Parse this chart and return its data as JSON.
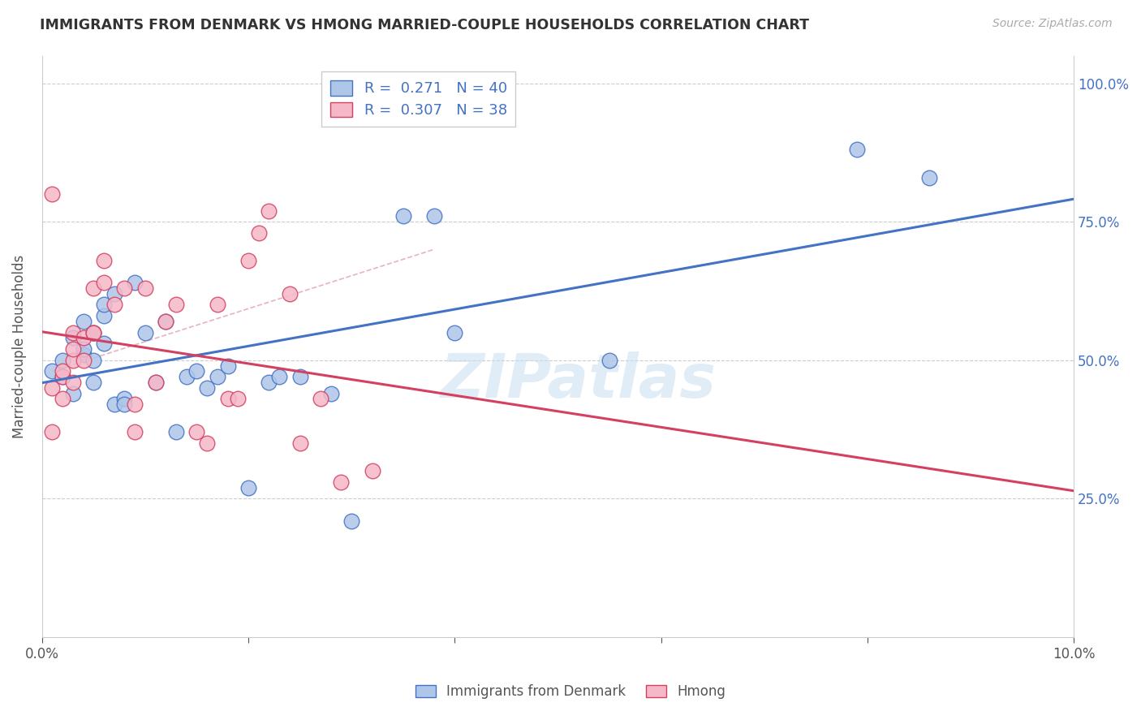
{
  "title": "IMMIGRANTS FROM DENMARK VS HMONG MARRIED-COUPLE HOUSEHOLDS CORRELATION CHART",
  "source": "Source: ZipAtlas.com",
  "ylabel": "Married-couple Households",
  "xmin": 0.0,
  "xmax": 0.1,
  "ymin": 0.0,
  "ymax": 1.05,
  "x_ticks": [
    0.0,
    0.02,
    0.04,
    0.06,
    0.08,
    0.1
  ],
  "x_tick_labels": [
    "0.0%",
    "",
    "",
    "",
    "",
    "10.0%"
  ],
  "y_ticks": [
    0.0,
    0.25,
    0.5,
    0.75,
    1.0
  ],
  "right_y_tick_labels": [
    "",
    "25.0%",
    "50.0%",
    "75.0%",
    "100.0%"
  ],
  "color_denmark": "#aec6e8",
  "color_hmong": "#f5b8c8",
  "line_color_denmark": "#4472c4",
  "line_color_hmong": "#d44060",
  "dashed_line_color": "#e0a0b8",
  "watermark": "ZIPatlas",
  "denmark_x": [
    0.001,
    0.002,
    0.002,
    0.003,
    0.003,
    0.004,
    0.004,
    0.004,
    0.005,
    0.005,
    0.005,
    0.006,
    0.006,
    0.006,
    0.007,
    0.007,
    0.008,
    0.008,
    0.009,
    0.01,
    0.011,
    0.012,
    0.013,
    0.014,
    0.015,
    0.016,
    0.017,
    0.018,
    0.02,
    0.022,
    0.023,
    0.025,
    0.028,
    0.03,
    0.035,
    0.038,
    0.04,
    0.055,
    0.079,
    0.086
  ],
  "denmark_y": [
    0.48,
    0.47,
    0.5,
    0.54,
    0.44,
    0.51,
    0.52,
    0.57,
    0.46,
    0.5,
    0.55,
    0.53,
    0.58,
    0.6,
    0.62,
    0.42,
    0.43,
    0.42,
    0.64,
    0.55,
    0.46,
    0.57,
    0.37,
    0.47,
    0.48,
    0.45,
    0.47,
    0.49,
    0.27,
    0.46,
    0.47,
    0.47,
    0.44,
    0.21,
    0.76,
    0.76,
    0.55,
    0.5,
    0.88,
    0.83
  ],
  "hmong_x": [
    0.001,
    0.001,
    0.001,
    0.002,
    0.002,
    0.002,
    0.003,
    0.003,
    0.003,
    0.003,
    0.004,
    0.004,
    0.005,
    0.005,
    0.005,
    0.006,
    0.006,
    0.007,
    0.008,
    0.009,
    0.009,
    0.01,
    0.011,
    0.012,
    0.013,
    0.015,
    0.016,
    0.017,
    0.018,
    0.019,
    0.02,
    0.021,
    0.022,
    0.024,
    0.025,
    0.027,
    0.029,
    0.032
  ],
  "hmong_y": [
    0.8,
    0.45,
    0.37,
    0.47,
    0.48,
    0.43,
    0.46,
    0.5,
    0.52,
    0.55,
    0.5,
    0.54,
    0.55,
    0.55,
    0.63,
    0.64,
    0.68,
    0.6,
    0.63,
    0.42,
    0.37,
    0.63,
    0.46,
    0.57,
    0.6,
    0.37,
    0.35,
    0.6,
    0.43,
    0.43,
    0.68,
    0.73,
    0.77,
    0.62,
    0.35,
    0.43,
    0.28,
    0.3
  ],
  "background_color": "#ffffff",
  "grid_color": "#cccccc"
}
